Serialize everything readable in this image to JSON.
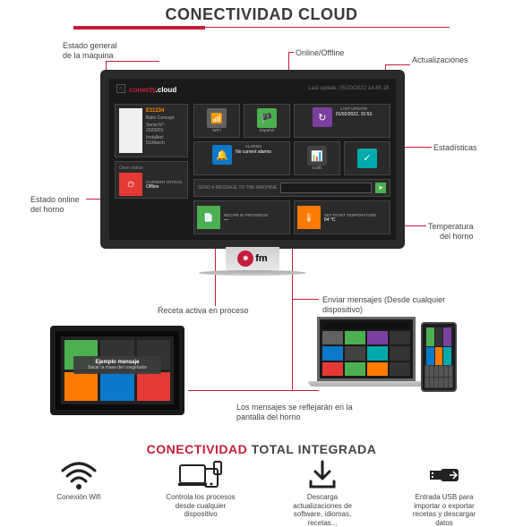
{
  "header": "CONECTIVIDAD CLOUD",
  "callouts": {
    "estado_general": "Estado    general\nde la máquina",
    "online_offline": "Online/Offline",
    "actualizaciones": "Actualizaciones",
    "estadisticas": "Estadísticas",
    "temp_horno": "Temperatura\ndel horno",
    "estado_online_horno": "Estado online\ndel horno",
    "receta_activa": "Receta activa en proceso",
    "enviar_msg": "Enviar mensajes (Desde cualquier\ndispositivo)",
    "msg_reflejaran": "Los mensajes se reflejarán en la\npantalla del horno"
  },
  "dashboard": {
    "brand1": "conecty",
    "brand2": "cloud",
    "date": "Last update: 05/20/2022 14:45:18",
    "device": {
      "name": "E11234",
      "line1": "Bake Concept",
      "line2": "Serial N°: 2020001",
      "line3": "Installed: 01/March"
    },
    "tiles": {
      "wifi": "WIFI",
      "lang": "Español",
      "update": "LAST UPDATE",
      "update_sub": "01/02/2022, 10:53",
      "alarms": "ALARMS",
      "alarms_sub": "No current alarms",
      "stats": "Gráfs",
      "check": ""
    },
    "msg_label": "SEND A MESSAGE TO THE MACHINE",
    "oven": {
      "title": "Oven status",
      "status_label": "CURRENT STATUS",
      "status": "Offline"
    },
    "bottom": {
      "recipe_label": "RECIPE IN PROGRESS",
      "recipe_val": "—",
      "temp_label": "SET POINT TEMPERATURE",
      "temp_val": "64 °C"
    }
  },
  "tablet": {
    "msg_title": "Ejemplo mensaje",
    "msg_text": "Sacar la masa del congelador"
  },
  "monitor_brand": "fm",
  "footer": {
    "title1": "CONECTIVIDAD",
    "title2": "TOTAL INTEGRADA",
    "items": [
      {
        "label": "Conexión Wifi"
      },
      {
        "label": "Controla los procesos\ndesde cualquier\ndispositivo"
      },
      {
        "label": "Descarga\nactualizaciones de\nsoftware, idiomas,\nrecetas..."
      },
      {
        "label": "Entrada USB para\nimportar o exportar\nrecetas y descargar\ndatos"
      }
    ]
  },
  "colors": {
    "green": "#4caf50",
    "orange": "#ff7b00",
    "red": "#e53935",
    "blue": "#0b78c9",
    "teal": "#0aa",
    "purple": "#7b3fa0",
    "grey": "#616161",
    "dgrey": "#424242",
    "accent": "#c41e3a"
  }
}
